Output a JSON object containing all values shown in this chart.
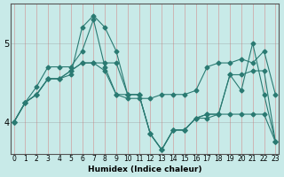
{
  "xlabel": "Humidex (Indice chaleur)",
  "ylabel": "",
  "background_color": "#c8eae8",
  "line_color": "#2a7a72",
  "grid_color_v": "#d48080",
  "grid_color_h": "#888888",
  "x_ticks": [
    0,
    1,
    2,
    3,
    4,
    5,
    6,
    7,
    8,
    9,
    10,
    11,
    12,
    13,
    14,
    15,
    16,
    17,
    18,
    19,
    20,
    21,
    22,
    23
  ],
  "y_ticks": [
    4,
    5
  ],
  "ylim": [
    3.6,
    5.5
  ],
  "xlim": [
    -0.3,
    23.3
  ],
  "series": [
    [
      4.0,
      4.25,
      4.45,
      4.7,
      4.7,
      4.7,
      4.9,
      5.3,
      4.7,
      4.35,
      4.3,
      4.3,
      4.3,
      4.35,
      4.35,
      4.35,
      4.4,
      4.7,
      4.75,
      4.75,
      4.8,
      4.75,
      4.9,
      4.35
    ],
    [
      4.0,
      4.25,
      4.35,
      4.55,
      4.55,
      4.6,
      5.2,
      5.35,
      5.2,
      4.9,
      4.35,
      4.35,
      3.85,
      3.65,
      3.9,
      3.9,
      4.05,
      4.1,
      4.1,
      4.6,
      4.4,
      5.0,
      4.35,
      3.75
    ],
    [
      4.0,
      4.25,
      4.35,
      4.55,
      4.55,
      4.65,
      4.75,
      4.75,
      4.75,
      4.75,
      4.35,
      4.35,
      3.85,
      3.65,
      3.9,
      3.9,
      4.05,
      4.1,
      4.1,
      4.6,
      4.6,
      4.65,
      4.65,
      3.75
    ],
    [
      4.0,
      4.25,
      4.35,
      4.55,
      4.55,
      4.65,
      4.75,
      4.75,
      4.65,
      4.35,
      4.35,
      4.35,
      3.85,
      3.65,
      3.9,
      3.9,
      4.05,
      4.05,
      4.1,
      4.1,
      4.1,
      4.1,
      4.1,
      3.75
    ]
  ]
}
